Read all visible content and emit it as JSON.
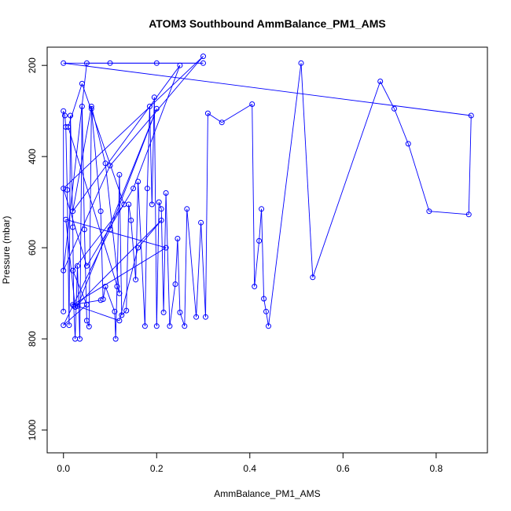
{
  "chart_data": {
    "type": "line",
    "title": "ATOM3 Southbound AmmBalance_PM1_AMS",
    "xlabel": "AmmBalance_PM1_AMS",
    "ylabel": "Pressure (mbar)",
    "xlim": [
      -0.035,
      0.91
    ],
    "ylim": [
      1050,
      160
    ],
    "y_reversed": true,
    "x_ticks": [
      0.0,
      0.2,
      0.4,
      0.6,
      0.8
    ],
    "y_ticks": [
      200,
      400,
      600,
      800,
      1000
    ],
    "x_tick_labels": [
      "0.0",
      "0.2",
      "0.4",
      "0.6",
      "0.8"
    ],
    "y_tick_labels": [
      "200",
      "400",
      "600",
      "800",
      "1000"
    ],
    "grid": false,
    "legend": "none",
    "series": [
      {
        "color": "#0000ff",
        "marker": "open-circle",
        "line": true,
        "points": [
          [
            0.0,
            740
          ],
          [
            0.0,
            300
          ],
          [
            0.003,
            310
          ],
          [
            0.005,
            335
          ],
          [
            0.008,
            473
          ],
          [
            0.012,
            770
          ],
          [
            0.015,
            310
          ],
          [
            0.02,
            555
          ],
          [
            0.022,
            728
          ],
          [
            0.025,
            800
          ],
          [
            0.03,
            640
          ],
          [
            0.035,
            800
          ],
          [
            0.04,
            290
          ],
          [
            0.045,
            560
          ],
          [
            0.05,
            760
          ],
          [
            0.055,
            773
          ],
          [
            0.06,
            295
          ],
          [
            0.08,
            520
          ],
          [
            0.085,
            713
          ],
          [
            0.09,
            685
          ],
          [
            0.11,
            740
          ],
          [
            0.112,
            800
          ],
          [
            0.115,
            685
          ],
          [
            0.12,
            440
          ],
          [
            0.125,
            748
          ],
          [
            0.135,
            738
          ],
          [
            0.14,
            505
          ],
          [
            0.145,
            540
          ],
          [
            0.155,
            670
          ],
          [
            0.16,
            455
          ],
          [
            0.175,
            772
          ],
          [
            0.18,
            470
          ],
          [
            0.185,
            290
          ],
          [
            0.19,
            505
          ],
          [
            0.195,
            270
          ],
          [
            0.2,
            772
          ],
          [
            0.205,
            500
          ],
          [
            0.21,
            515
          ],
          [
            0.215,
            742
          ],
          [
            0.22,
            480
          ],
          [
            0.228,
            772
          ],
          [
            0.24,
            680
          ],
          [
            0.245,
            580
          ],
          [
            0.25,
            742
          ],
          [
            0.26,
            772
          ],
          [
            0.265,
            515
          ],
          [
            0.285,
            752
          ],
          [
            0.295,
            545
          ],
          [
            0.305,
            752
          ],
          [
            0.31,
            305
          ],
          [
            0.34,
            325
          ],
          [
            0.405,
            285
          ],
          [
            0.41,
            685
          ],
          [
            0.42,
            585
          ],
          [
            0.425,
            515
          ],
          [
            0.43,
            712
          ],
          [
            0.435,
            740
          ],
          [
            0.44,
            772
          ],
          [
            0.51,
            195
          ],
          [
            0.535,
            665
          ],
          [
            0.68,
            235
          ],
          [
            0.71,
            295
          ],
          [
            0.74,
            372
          ],
          [
            0.785,
            520
          ],
          [
            0.87,
            527
          ],
          [
            0.875,
            310
          ],
          [
            0.0,
            195
          ],
          [
            0.1,
            195
          ],
          [
            0.2,
            195
          ],
          [
            0.3,
            195
          ],
          [
            0.05,
            195
          ],
          [
            0.0,
            650
          ],
          [
            0.1,
            420
          ],
          [
            0.3,
            180
          ],
          [
            0.0,
            470
          ],
          [
            0.05,
            640
          ],
          [
            0.15,
            470
          ],
          [
            0.25,
            200
          ],
          [
            0.02,
            520
          ],
          [
            0.06,
            290
          ],
          [
            0.09,
            415
          ],
          [
            0.12,
            700
          ],
          [
            0.01,
            335
          ],
          [
            0.04,
            240
          ],
          [
            0.13,
            505
          ],
          [
            0.02,
            650
          ],
          [
            0.05,
            725
          ],
          [
            0.0,
            770
          ],
          [
            0.1,
            560
          ],
          [
            0.2,
            295
          ],
          [
            0.03,
            728
          ],
          [
            0.12,
            760
          ],
          [
            0.16,
            600
          ],
          [
            0.21,
            540
          ],
          [
            0.025,
            730
          ],
          [
            0.005,
            538
          ],
          [
            0.22,
            600
          ],
          [
            0.02,
            725
          ],
          [
            0.08,
            715
          ]
        ]
      }
    ]
  }
}
